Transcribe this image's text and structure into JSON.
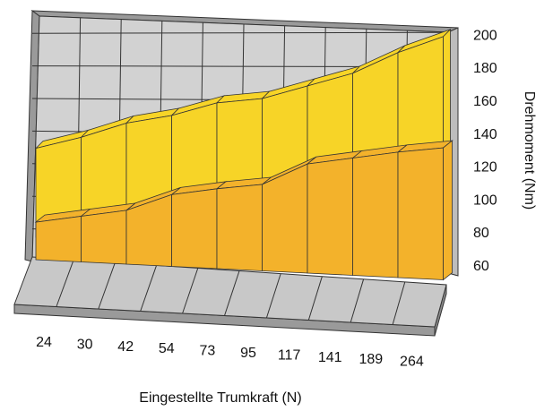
{
  "chart_data": {
    "type": "area",
    "style": "3d-ribbon",
    "categories": [
      "24",
      "30",
      "42",
      "54",
      "73",
      "95",
      "117",
      "141",
      "189",
      "264"
    ],
    "series": [
      {
        "values": [
          114,
          122,
          132,
          138,
          147,
          151,
          160,
          169,
          183,
          194
        ]
      },
      {
        "values": [
          83,
          88,
          93,
          104,
          109,
          113,
          127,
          132,
          137,
          141
        ]
      }
    ],
    "xlabel": "Eingestellte Trumkraft (N)",
    "ylabel": "Drehmoment (Nm)",
    "yticks": [
      60,
      80,
      100,
      120,
      140,
      160,
      180,
      200
    ],
    "ylim": [
      60,
      200
    ],
    "grid": true,
    "colors": {
      "front_series": "#f3b22b",
      "back_series": "#f7d427",
      "wall": "#d2d2d2",
      "floor": "#c8c8c8",
      "gridline": "#333333"
    }
  }
}
